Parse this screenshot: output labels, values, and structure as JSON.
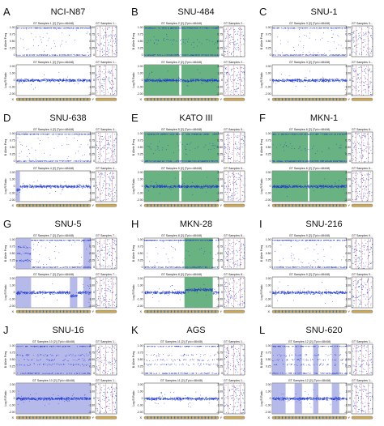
{
  "figure": {
    "track_axis": {
      "baf_label": "B Allele Freq",
      "lrr_label": "Log R Ratio",
      "baf_ticks": [
        "1.00",
        "0.75",
        "0.50",
        "0.25",
        "0"
      ],
      "lrr_ticks": [
        "2.00",
        "1.00",
        "0",
        "-1.00",
        "-2.00"
      ],
      "baf_ylim": [
        0,
        1
      ],
      "lrr_ylim": [
        -2,
        2
      ]
    },
    "chrom_labels": {
      "x": "X",
      "y": "Y"
    },
    "colors": {
      "points": "#1a33cc",
      "ideogram": "#c9a75a",
      "ideogram_band": "#3a6fb0"
    }
  },
  "chart_data": [
    {
      "letter": "A",
      "name": "NCI-N87",
      "type": "scatter",
      "baf_title": "GT Samples 1 [2]  (Tp/c=48448)",
      "lrr_title": "GT Samples 1 [2]  (Tp/c=48448)",
      "side_title_baf": "GT Samples 1...",
      "side_title_lrr": "GT Samples 1...",
      "pattern": "sparse",
      "shade": "none",
      "shade_regions": [],
      "lrr_dips": []
    },
    {
      "letter": "B",
      "name": "SNU-484",
      "type": "scatter",
      "baf_title": "GT Samples 2 [2]  (Tp/c=48448)",
      "lrr_title": "GT Samples 2 [2]  (Tp/c=48448)",
      "side_title_baf": "GT Samples 2...",
      "side_title_lrr": "GT Samples 2...",
      "pattern": "band",
      "shade": "green",
      "shade_regions": [
        [
          0,
          0.47
        ],
        [
          0.5,
          1
        ]
      ],
      "lrr_dips": []
    },
    {
      "letter": "C",
      "name": "SNU-1",
      "type": "scatter",
      "baf_title": "GT Samples 3 [2]  (Tp/c=48448)",
      "lrr_title": "GT Samples 3 [2]  (Tp/c=48448)",
      "side_title_baf": "GT Samples 3...",
      "side_title_lrr": "GT Samples 3...",
      "pattern": "sparse",
      "shade": "none",
      "shade_regions": [],
      "lrr_dips": []
    },
    {
      "letter": "D",
      "name": "SNU-638",
      "type": "scatter",
      "baf_title": "GT Samples 4 [2]  (Tp/c=48448)",
      "lrr_title": "GT Samples 4 [2]  (Tp/c=48448)",
      "side_title_baf": "GT Samples 4...",
      "side_title_lrr": "GT Samples 4...",
      "pattern": "sparse",
      "shade": "none",
      "shade_regions": [],
      "lrr_dips": [
        [
          0.0,
          0.05
        ]
      ]
    },
    {
      "letter": "E",
      "name": "KATO III",
      "type": "scatter",
      "baf_title": "GT Samples 5 [2]  (Tp/c=48448)",
      "lrr_title": "GT Samples 5 [2]  (Tp/c=48448)",
      "side_title_baf": "GT Samples 5...",
      "side_title_lrr": "GT Samples 5...",
      "pattern": "band",
      "shade": "green",
      "shade_regions": [
        [
          0,
          0.47
        ],
        [
          0.5,
          1
        ]
      ],
      "lrr_dips": []
    },
    {
      "letter": "F",
      "name": "MKN-1",
      "type": "scatter",
      "baf_title": "GT Samples 6 [2]  (Tp/c=48448)",
      "lrr_title": "GT Samples 6 [2]  (Tp/c=48448)",
      "side_title_baf": "GT Samples 6...",
      "side_title_lrr": "GT Samples 6...",
      "pattern": "band",
      "shade": "green",
      "shade_regions": [
        [
          0,
          0.48
        ],
        [
          0.5,
          1
        ]
      ],
      "lrr_dips": []
    },
    {
      "letter": "G",
      "name": "SNU-5",
      "type": "scatter",
      "baf_title": "GT Samples 7 [2]  (Tp/c=48448)",
      "lrr_title": "GT Samples 7 [2]  (Tp/c=48448)",
      "side_title_baf": "GT Samples 7...",
      "side_title_lrr": "GT Samples 7...",
      "pattern": "left_lavender",
      "shade": "lavender",
      "shade_regions": [
        [
          0,
          0.2
        ],
        [
          0.9,
          1
        ]
      ],
      "lrr_dips": [
        [
          0.72,
          0.82
        ]
      ]
    },
    {
      "letter": "H",
      "name": "MKN-28",
      "type": "scatter",
      "baf_title": "GT Samples 8 [2]  (Tp/c=48448)",
      "lrr_title": "GT Samples 8 [2]  (Tp/c=48448)",
      "side_title_baf": "GT Samples 8...",
      "side_title_lrr": "GT Samples 8...",
      "pattern": "right_green",
      "shade": "green",
      "shade_regions": [
        [
          0.54,
          0.92
        ]
      ],
      "lrr_dips": []
    },
    {
      "letter": "I",
      "name": "SNU-216",
      "type": "scatter",
      "baf_title": "GT Samples 9 [2]  (Tp/c=48448)",
      "lrr_title": "GT Samples 9 [2]  (Tp/c=48448)",
      "side_title_baf": "GT Samples 9...",
      "side_title_lrr": "GT Samples 9...",
      "pattern": "sparse",
      "shade": "none",
      "shade_regions": [],
      "lrr_dips": []
    },
    {
      "letter": "J",
      "name": "SNU-16",
      "type": "scatter",
      "baf_title": "GT Samples 10 [2]  (Tp/c=48448)",
      "lrr_title": "GT Samples 10 [2]  (Tp/c=48448)",
      "side_title_baf": "GT Samples 1...",
      "side_title_lrr": "GT Samples 1...",
      "pattern": "lavender_full",
      "shade": "lavender",
      "shade_regions": [
        [
          0,
          1
        ]
      ],
      "lrr_dips": []
    },
    {
      "letter": "K",
      "name": "AGS",
      "type": "scatter",
      "baf_title": "GT Samples 11 [2]  (Tp/c=48448)",
      "lrr_title": "GT Samples 11 [2]  (Tp/c=48448)",
      "side_title_baf": "GT Samples 1...",
      "side_title_lrr": "GT Samples 1...",
      "pattern": "multi_band",
      "shade": "none",
      "shade_regions": [],
      "lrr_dips": []
    },
    {
      "letter": "L",
      "name": "SNU-620",
      "type": "scatter",
      "baf_title": "GT Samples 12 [2]  (Tp/c=48448)",
      "lrr_title": "GT Samples 12 [2]  (Tp/c=48448)",
      "side_title_baf": "GT Samples 1...",
      "side_title_lrr": "GT Samples 1...",
      "pattern": "multi_lavender",
      "shade": "lavender",
      "shade_regions": [
        [
          0,
          0.18
        ],
        [
          0.3,
          0.4
        ],
        [
          0.55,
          0.62
        ],
        [
          0.8,
          0.9
        ]
      ],
      "lrr_dips": []
    }
  ]
}
